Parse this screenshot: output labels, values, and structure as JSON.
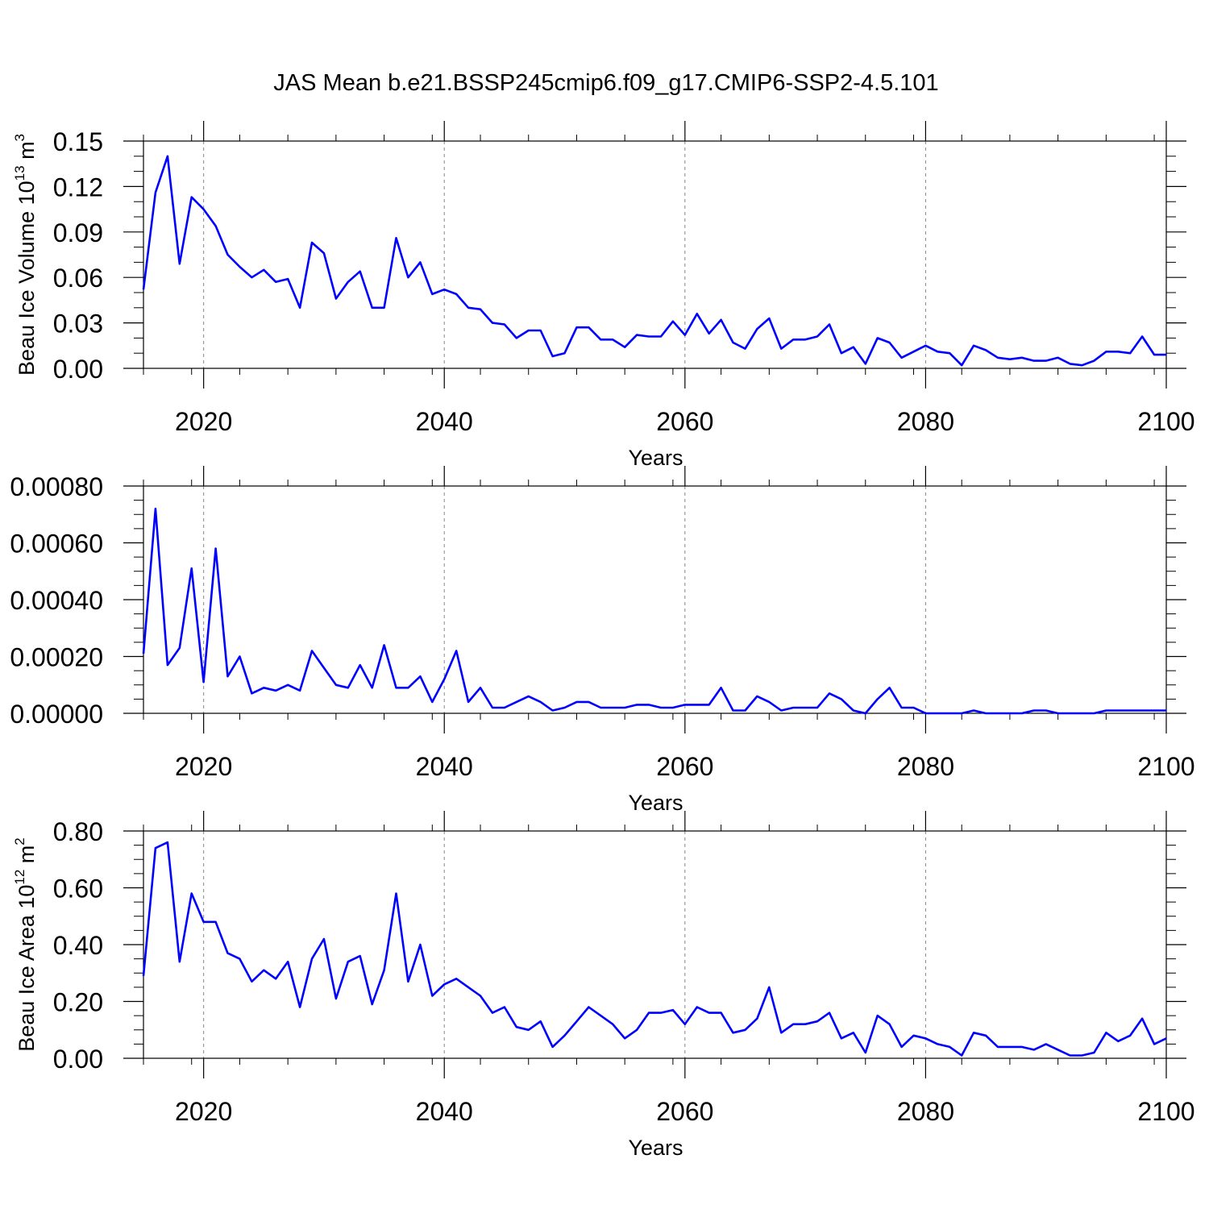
{
  "colors": {
    "line": "#0000ff",
    "axis": "#000000",
    "grid": "#888888"
  },
  "chart_data": [
    {
      "type": "line",
      "title": "JAS Mean b.e21.BSSP245cmip6.f09_g17.CMIP6-SSP2-4.5.101",
      "xlabel": "Years",
      "ylabel": "Beau Ice Volume 10",
      "ylabel_sup": "13",
      "ylabel_unit": " m",
      "ylabel_unit_sup": "3",
      "xlim": [
        2015,
        2100
      ],
      "ylim": [
        0,
        0.15
      ],
      "xticks": [
        "2020",
        "2040",
        "2060",
        "2080",
        "2100"
      ],
      "xtick_values": [
        2020,
        2040,
        2060,
        2080,
        2100
      ],
      "yticks": [
        "0.00",
        "0.03",
        "0.06",
        "0.09",
        "0.12",
        "0.15"
      ],
      "ytick_values": [
        0,
        0.03,
        0.06,
        0.09,
        0.12,
        0.15
      ],
      "grid": "vertical dashed at major x ticks",
      "x_start": 2015,
      "values": [
        0.052,
        0.116,
        0.14,
        0.069,
        0.113,
        0.105,
        0.094,
        0.075,
        0.067,
        0.06,
        0.065,
        0.057,
        0.059,
        0.04,
        0.083,
        0.076,
        0.046,
        0.057,
        0.064,
        0.04,
        0.04,
        0.086,
        0.06,
        0.07,
        0.049,
        0.052,
        0.049,
        0.04,
        0.039,
        0.03,
        0.029,
        0.02,
        0.025,
        0.025,
        0.008,
        0.01,
        0.027,
        0.027,
        0.019,
        0.019,
        0.014,
        0.022,
        0.021,
        0.021,
        0.031,
        0.022,
        0.036,
        0.023,
        0.032,
        0.017,
        0.013,
        0.026,
        0.033,
        0.013,
        0.019,
        0.019,
        0.021,
        0.029,
        0.01,
        0.014,
        0.003,
        0.02,
        0.017,
        0.007,
        0.011,
        0.015,
        0.011,
        0.01,
        0.002,
        0.015,
        0.012,
        0.007,
        0.006,
        0.007,
        0.005,
        0.005,
        0.007,
        0.003,
        0.002,
        0.005,
        0.011,
        0.011,
        0.01,
        0.021,
        0.009,
        0.009
      ]
    },
    {
      "type": "line",
      "xlabel": "Years",
      "xlim": [
        2015,
        2100
      ],
      "ylim": [
        0,
        0.0008
      ],
      "xticks": [
        "2020",
        "2040",
        "2060",
        "2080",
        "2100"
      ],
      "xtick_values": [
        2020,
        2040,
        2060,
        2080,
        2100
      ],
      "yticks": [
        "0.00000",
        "0.00020",
        "0.00040",
        "0.00060",
        "0.00080"
      ],
      "ytick_values": [
        0,
        0.0002,
        0.0004,
        0.0006,
        0.0008
      ],
      "grid": "vertical dashed at major x ticks",
      "x_start": 2015,
      "values": [
        0.00021,
        0.00072,
        0.00017,
        0.00023,
        0.00051,
        0.00011,
        0.00058,
        0.00013,
        0.0002,
        7e-05,
        9e-05,
        8e-05,
        0.0001,
        8e-05,
        0.00022,
        0.00016,
        0.0001,
        9e-05,
        0.00017,
        9e-05,
        0.00024,
        9e-05,
        9e-05,
        0.00013,
        4e-05,
        0.00012,
        0.00022,
        4e-05,
        9e-05,
        2e-05,
        2e-05,
        4e-05,
        6e-05,
        4e-05,
        1e-05,
        2e-05,
        4e-05,
        4e-05,
        2e-05,
        2e-05,
        2e-05,
        3e-05,
        3e-05,
        2e-05,
        2e-05,
        3e-05,
        3e-05,
        3e-05,
        9e-05,
        1e-05,
        1e-05,
        6e-05,
        4e-05,
        1e-05,
        2e-05,
        2e-05,
        2e-05,
        7e-05,
        5e-05,
        1e-05,
        0.0,
        5e-05,
        9e-05,
        2e-05,
        2e-05,
        0.0,
        0.0,
        0.0,
        0.0,
        1e-05,
        0.0,
        0.0,
        0.0,
        0.0,
        1e-05,
        1e-05,
        0.0,
        0.0,
        0.0,
        0.0,
        1e-05,
        1e-05,
        1e-05,
        1e-05,
        1e-05,
        1e-05
      ]
    },
    {
      "type": "line",
      "xlabel": "Years",
      "ylabel": "Beau Ice Area 10",
      "ylabel_sup": "12",
      "ylabel_unit": " m",
      "ylabel_unit_sup": "2",
      "xlim": [
        2015,
        2100
      ],
      "ylim": [
        0,
        0.8
      ],
      "xticks": [
        "2020",
        "2040",
        "2060",
        "2080",
        "2100"
      ],
      "xtick_values": [
        2020,
        2040,
        2060,
        2080,
        2100
      ],
      "yticks": [
        "0.00",
        "0.20",
        "0.40",
        "0.60",
        "0.80"
      ],
      "ytick_values": [
        0,
        0.2,
        0.4,
        0.6,
        0.8
      ],
      "grid": "vertical dashed at major x ticks",
      "x_start": 2015,
      "values": [
        0.29,
        0.74,
        0.76,
        0.34,
        0.58,
        0.48,
        0.48,
        0.37,
        0.35,
        0.27,
        0.31,
        0.28,
        0.34,
        0.18,
        0.35,
        0.42,
        0.21,
        0.34,
        0.36,
        0.19,
        0.31,
        0.58,
        0.27,
        0.4,
        0.22,
        0.26,
        0.28,
        0.25,
        0.22,
        0.16,
        0.18,
        0.11,
        0.1,
        0.13,
        0.04,
        0.08,
        0.13,
        0.18,
        0.15,
        0.12,
        0.07,
        0.1,
        0.16,
        0.16,
        0.17,
        0.12,
        0.18,
        0.16,
        0.16,
        0.09,
        0.1,
        0.14,
        0.25,
        0.09,
        0.12,
        0.12,
        0.13,
        0.16,
        0.07,
        0.09,
        0.02,
        0.15,
        0.12,
        0.04,
        0.08,
        0.07,
        0.05,
        0.04,
        0.01,
        0.09,
        0.08,
        0.04,
        0.04,
        0.04,
        0.03,
        0.05,
        0.03,
        0.01,
        0.01,
        0.02,
        0.09,
        0.06,
        0.08,
        0.14,
        0.05,
        0.07
      ]
    }
  ]
}
